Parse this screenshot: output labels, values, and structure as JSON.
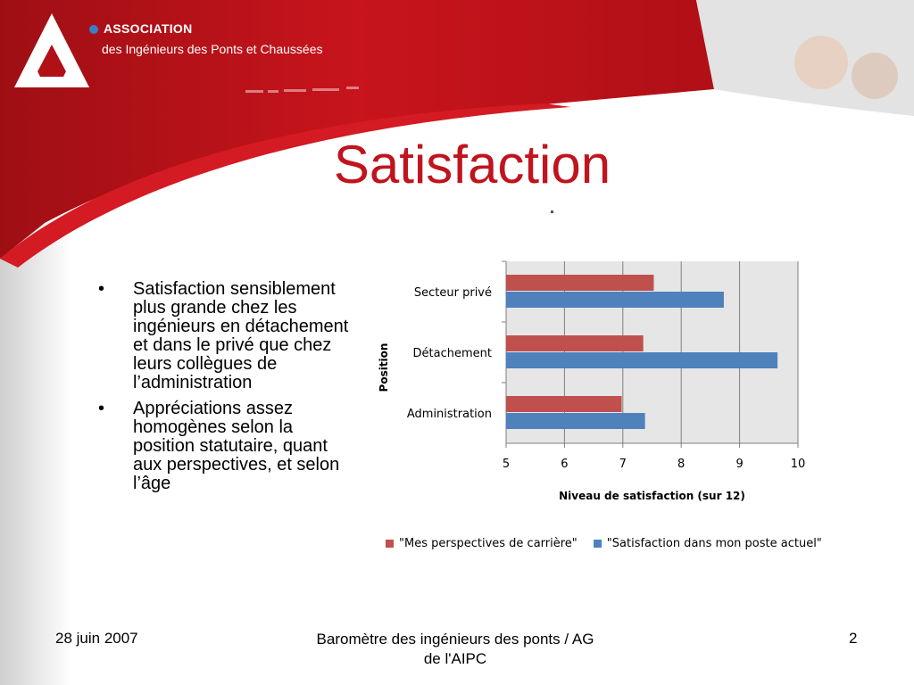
{
  "header": {
    "org_name": "ASSOCIATION",
    "org_subtitle": "des Ingénieurs des Ponts et Chaussées"
  },
  "slide": {
    "title": "Satisfaction",
    "bullets": [
      {
        "mark": "•",
        "text": "Satisfaction sensiblement plus grande chez les ingénieurs en détachement et dans le privé que chez leurs collègues de l’administration"
      },
      {
        "mark": "•",
        "text": "Appréciations assez homogènes selon la position statutaire, quant aux perspectives, et selon l’âge"
      }
    ]
  },
  "footer": {
    "date": "28 juin 2007",
    "center": "Baromètre des ingénieurs des ponts / AG de l'AIPC",
    "page": "2"
  },
  "colors": {
    "brand_red": "#c0141e",
    "series_red": "#c0504d",
    "series_blue": "#4f81bd"
  },
  "chart_data": {
    "type": "bar",
    "orientation": "horizontal",
    "categories": [
      "Secteur privé",
      "Détachement",
      "Administration"
    ],
    "series": [
      {
        "name": "\"Mes perspectives de carrière\"",
        "color": "#c0504d",
        "values": [
          7.53,
          7.35,
          6.98
        ]
      },
      {
        "name": "\"Satisfaction dans mon poste actuel\"",
        "color": "#4f81bd",
        "values": [
          8.73,
          9.65,
          7.38
        ]
      }
    ],
    "xlim": [
      5,
      10
    ],
    "xticks": [
      "5",
      "6",
      "7",
      "8",
      "9",
      "10"
    ],
    "xlabel": "Niveau de satisfaction (sur 12)",
    "ylabel": "Position",
    "grid": true,
    "legend": "bottom"
  }
}
